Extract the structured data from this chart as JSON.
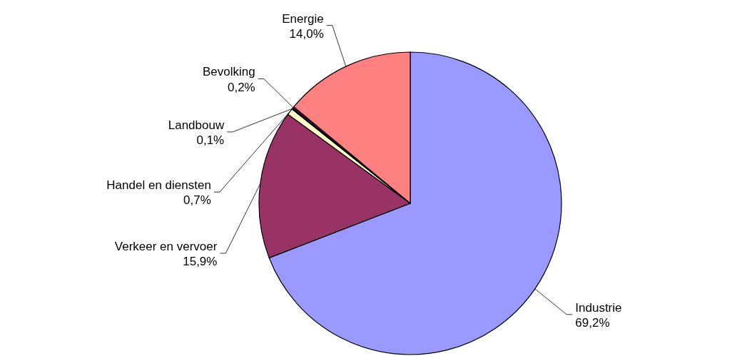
{
  "chart_data": {
    "type": "pie",
    "categories": [
      "Industrie",
      "Verkeer en vervoer",
      "Handel en diensten",
      "Landbouw",
      "Bevolking",
      "Energie"
    ],
    "values": [
      69.2,
      15.9,
      0.7,
      0.1,
      0.2,
      14.0
    ],
    "value_labels": [
      "69,2%",
      "15,9%",
      "0,7%",
      "0,1%",
      "0,2%",
      "14,0%"
    ],
    "colors": [
      "#9999ff",
      "#993366",
      "#ffffcc",
      "#ccffff",
      "#660066",
      "#ff8080"
    ]
  }
}
